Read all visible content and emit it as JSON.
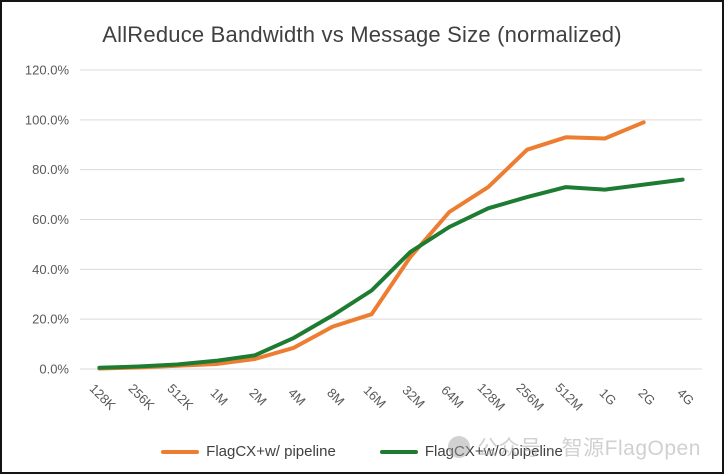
{
  "title": "AllReduce Bandwidth vs Message Size (normalized)",
  "watermark": {
    "icon": "wechat-account-circle-icon",
    "text": "公众号 · 智源FlagOpen"
  },
  "chart_data": {
    "type": "line",
    "title": "AllReduce Bandwidth vs Message Size (normalized)",
    "categories": [
      "128K",
      "256K",
      "512K",
      "1M",
      "2M",
      "4M",
      "8M",
      "16M",
      "32M",
      "64M",
      "128M",
      "256M",
      "512M",
      "1G",
      "2G",
      "4G"
    ],
    "series": [
      {
        "name": "FlagCX+w/ pipeline",
        "color": "#ED7D31",
        "values": [
          0.2,
          0.6,
          1.3,
          2,
          4,
          8.5,
          17,
          22,
          45,
          63,
          73,
          88,
          93,
          92.5,
          99,
          null
        ]
      },
      {
        "name": "FlagCX+w/o pipeline",
        "color": "#1E7B32",
        "values": [
          0.5,
          1,
          1.8,
          3.3,
          5.5,
          12.5,
          21.5,
          31.5,
          47,
          57,
          64.5,
          69,
          73,
          72,
          74,
          76
        ]
      }
    ],
    "xlabel": "",
    "ylabel": "",
    "ylim": [
      0,
      120
    ],
    "y_ticks": [
      {
        "v": 0,
        "label": "0.0%"
      },
      {
        "v": 20,
        "label": "20.0%"
      },
      {
        "v": 40,
        "label": "40.0%"
      },
      {
        "v": 60,
        "label": "60.0%"
      },
      {
        "v": 80,
        "label": "80.0%"
      },
      {
        "v": 100,
        "label": "100.0%"
      },
      {
        "v": 120,
        "label": "120.0%"
      }
    ],
    "grid": true,
    "legend_position": "bottom",
    "x_tick_rotation": 45
  },
  "colors": {
    "grid": "#D9D9D9",
    "axis_text": "#595959",
    "title_text": "#404040",
    "legend_text": "#404040",
    "watermark": "#B4B4B4",
    "frame": "#141414",
    "background": "#FFFFFF"
  }
}
